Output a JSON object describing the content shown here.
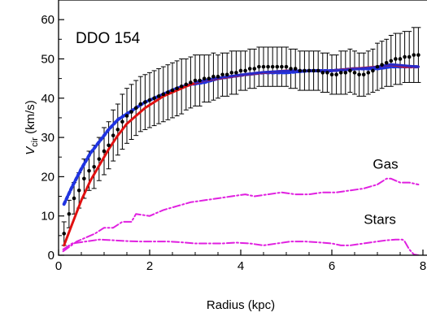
{
  "chart_data": {
    "type": "line",
    "title": "",
    "panel_label": "DDO 154",
    "xlabel": "Radius (kpc)",
    "ylabel_main": "V",
    "ylabel_sub": "cir",
    "ylabel_unit": " (km/s)",
    "xlim": [
      0,
      8
    ],
    "ylim": [
      0,
      65
    ],
    "xticks": [
      0,
      2,
      4,
      6,
      8
    ],
    "yticks": [
      0,
      10,
      20,
      30,
      40,
      50,
      60
    ],
    "grid": false,
    "annotations": [
      {
        "text": "Gas",
        "x": 6.9,
        "y": 22
      },
      {
        "text": "Stars",
        "x": 6.7,
        "y": 8
      }
    ],
    "observed": {
      "radius": [
        0.12,
        0.23,
        0.34,
        0.45,
        0.56,
        0.67,
        0.78,
        0.89,
        1.0,
        1.1,
        1.2,
        1.3,
        1.4,
        1.5,
        1.6,
        1.7,
        1.8,
        1.9,
        2.0,
        2.1,
        2.2,
        2.3,
        2.4,
        2.5,
        2.6,
        2.7,
        2.8,
        2.9,
        3.0,
        3.1,
        3.2,
        3.3,
        3.4,
        3.5,
        3.6,
        3.7,
        3.8,
        3.9,
        4.0,
        4.1,
        4.2,
        4.3,
        4.4,
        4.5,
        4.6,
        4.7,
        4.8,
        4.9,
        5.0,
        5.1,
        5.2,
        5.3,
        5.4,
        5.5,
        5.6,
        5.7,
        5.8,
        5.9,
        6.0,
        6.1,
        6.2,
        6.3,
        6.4,
        6.5,
        6.6,
        6.7,
        6.8,
        6.9,
        7.0,
        7.1,
        7.2,
        7.3,
        7.4,
        7.5,
        7.6,
        7.7,
        7.8,
        7.9
      ],
      "velocity": [
        5.5,
        10.5,
        14.5,
        16.5,
        19.5,
        21.5,
        22.5,
        24.5,
        26.5,
        28.0,
        30.5,
        32.0,
        34.0,
        35.5,
        36.5,
        37.5,
        38.5,
        39.0,
        39.5,
        40.0,
        40.5,
        41.0,
        41.5,
        42.0,
        42.5,
        43.0,
        43.5,
        44.0,
        44.5,
        44.5,
        45.0,
        45.0,
        45.5,
        45.5,
        46.0,
        46.0,
        46.5,
        46.5,
        47.0,
        47.0,
        47.5,
        47.5,
        48.0,
        48.0,
        48.0,
        48.0,
        48.0,
        48.0,
        48.0,
        47.5,
        47.5,
        47.0,
        47.0,
        47.0,
        47.0,
        47.0,
        46.5,
        46.5,
        46.0,
        46.0,
        46.5,
        46.5,
        47.0,
        46.5,
        46.0,
        46.0,
        46.5,
        47.0,
        48.0,
        48.5,
        49.0,
        49.5,
        50.0,
        50.0,
        50.5,
        50.5,
        51.0,
        51.0
      ],
      "error": [
        3.0,
        3.5,
        4.0,
        4.5,
        5.0,
        5.0,
        5.5,
        5.5,
        6.0,
        6.0,
        6.5,
        6.5,
        7.0,
        7.0,
        7.0,
        7.0,
        7.0,
        7.0,
        7.0,
        7.0,
        7.0,
        7.0,
        7.0,
        7.0,
        7.0,
        7.0,
        6.5,
        6.5,
        6.5,
        6.5,
        6.0,
        6.0,
        6.0,
        5.5,
        5.5,
        5.5,
        5.5,
        5.5,
        5.0,
        5.0,
        5.0,
        5.0,
        5.0,
        5.0,
        5.0,
        5.0,
        5.0,
        5.0,
        5.0,
        5.0,
        5.0,
        5.0,
        5.0,
        5.0,
        5.0,
        5.0,
        5.0,
        5.0,
        5.0,
        5.0,
        5.5,
        5.5,
        5.5,
        5.5,
        5.5,
        5.5,
        5.5,
        5.5,
        6.0,
        6.0,
        6.0,
        6.5,
        6.5,
        6.5,
        6.5,
        6.5,
        7.0,
        7.0
      ],
      "color": "#000000"
    },
    "series": [
      {
        "style": "dotted",
        "color": "#1f33e0",
        "x": [
          0.12,
          0.3,
          0.5,
          0.7,
          0.9,
          1.1,
          1.3,
          1.5,
          1.7,
          1.9,
          2.1,
          2.3,
          2.6,
          2.9,
          3.2,
          3.5,
          3.8,
          4.1,
          4.5,
          5.0,
          5.5,
          6.0,
          6.5,
          7.0,
          7.3,
          7.6,
          7.9
        ],
        "y": [
          13.0,
          17.5,
          22.0,
          26.0,
          29.0,
          32.0,
          34.5,
          36.0,
          37.5,
          39.0,
          40.0,
          41.0,
          42.5,
          43.5,
          44.0,
          45.0,
          45.5,
          46.0,
          46.5,
          46.5,
          47.0,
          47.0,
          47.5,
          47.5,
          48.0,
          48.0,
          48.0
        ]
      },
      {
        "style": "solid",
        "color": "#e01010",
        "x": [
          0.12,
          0.3,
          0.5,
          0.7,
          0.9,
          1.1,
          1.3,
          1.5,
          1.7,
          1.9,
          2.1,
          2.3,
          2.6,
          2.9,
          3.2,
          3.5,
          3.8,
          4.1,
          4.5,
          5.0,
          5.5,
          6.0,
          6.5,
          7.0,
          7.3,
          7.6,
          7.9
        ],
        "y": [
          2.5,
          8.0,
          14.0,
          19.0,
          23.0,
          27.0,
          30.5,
          33.5,
          35.5,
          37.5,
          39.0,
          40.5,
          42.0,
          43.5,
          44.5,
          45.0,
          45.5,
          46.0,
          46.5,
          47.0,
          47.0,
          47.0,
          47.5,
          48.0,
          48.5,
          48.0,
          48.0
        ]
      },
      {
        "style": "solid",
        "color": "#2a2ac8",
        "x": [
          3.0,
          3.3,
          3.6,
          3.9,
          4.2,
          4.5,
          4.8,
          5.1,
          5.4,
          5.7,
          6.0,
          6.3,
          6.6,
          6.9,
          7.1,
          7.3,
          7.5,
          7.7,
          7.9
        ],
        "y": [
          44.0,
          44.8,
          45.3,
          45.8,
          46.2,
          46.6,
          46.8,
          47.0,
          47.0,
          47.0,
          47.0,
          47.2,
          47.5,
          47.8,
          48.2,
          48.6,
          48.4,
          48.2,
          48.0
        ]
      },
      {
        "style": "dashdot",
        "color": "#e020e0",
        "x": [
          0.1,
          0.4,
          0.8,
          1.0,
          1.2,
          1.4,
          1.6,
          1.7,
          2.0,
          2.3,
          2.6,
          2.9,
          3.2,
          3.5,
          3.8,
          4.1,
          4.3,
          4.6,
          4.9,
          5.2,
          5.5,
          5.8,
          6.1,
          6.4,
          6.7,
          7.0,
          7.2,
          7.3,
          7.5,
          7.7,
          7.9
        ],
        "y": [
          1.0,
          3.5,
          5.5,
          7.0,
          7.0,
          8.5,
          8.5,
          10.5,
          10.0,
          11.5,
          12.5,
          13.5,
          14.0,
          14.5,
          15.0,
          15.5,
          15.0,
          15.5,
          16.0,
          15.5,
          15.5,
          16.0,
          16.0,
          16.5,
          17.0,
          18.0,
          19.5,
          19.5,
          18.5,
          18.5,
          18.0
        ]
      },
      {
        "style": "dashdot",
        "color": "#e020e0",
        "x": [
          0.1,
          0.3,
          0.6,
          0.9,
          1.2,
          1.5,
          1.8,
          2.1,
          2.4,
          2.7,
          3.0,
          3.3,
          3.6,
          3.9,
          4.2,
          4.5,
          4.8,
          5.1,
          5.4,
          5.7,
          6.0,
          6.2,
          6.4,
          6.7,
          7.0,
          7.2,
          7.4,
          7.55,
          7.6,
          7.7,
          7.8,
          7.9
        ],
        "y": [
          1.5,
          3.0,
          3.5,
          4.0,
          3.8,
          3.6,
          3.5,
          3.5,
          3.5,
          3.3,
          3.0,
          3.0,
          3.0,
          3.2,
          3.0,
          2.5,
          3.0,
          3.5,
          3.5,
          3.3,
          3.0,
          2.5,
          2.5,
          3.0,
          3.5,
          3.8,
          4.0,
          4.0,
          3.5,
          1.5,
          0.2,
          0.0
        ]
      }
    ]
  }
}
